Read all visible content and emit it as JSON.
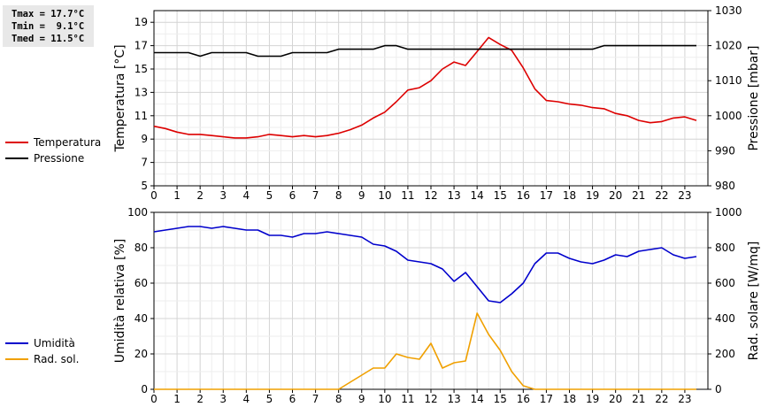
{
  "stats": {
    "tmax": "Tmax = 17.7°C",
    "tmin": "Tmin =  9.1°C",
    "tmed": "Tmed = 11.5°C"
  },
  "chart_data": [
    {
      "type": "line",
      "xlabel": "",
      "ylabel": "Temperatura [°C]",
      "y2label": "Pressione [mbar]",
      "xlim": [
        0,
        24
      ],
      "ylim": [
        5,
        20
      ],
      "y2lim": [
        980,
        1030
      ],
      "xticks": [
        "0",
        "1",
        "2",
        "3",
        "4",
        "5",
        "6",
        "7",
        "8",
        "9",
        "10",
        "11",
        "12",
        "13",
        "14",
        "15",
        "16",
        "17",
        "18",
        "19",
        "20",
        "21",
        "22",
        "23"
      ],
      "yticks": [
        "5",
        "7",
        "9",
        "11",
        "13",
        "15",
        "17",
        "19"
      ],
      "y2ticks": [
        "980",
        "990",
        "1000",
        "1010",
        "1020",
        "1030"
      ],
      "grid": true,
      "legend": "left",
      "series": [
        {
          "name": "Temperatura",
          "axis": "left",
          "color": "#dd0000",
          "x": [
            0,
            0.5,
            1,
            1.5,
            2,
            2.5,
            3,
            3.5,
            4,
            4.5,
            5,
            5.5,
            6,
            6.5,
            7,
            7.5,
            8,
            8.5,
            9,
            9.5,
            10,
            10.5,
            11,
            11.5,
            12,
            12.5,
            13,
            13.5,
            14,
            14.5,
            15,
            15.5,
            16,
            16.5,
            17,
            17.5,
            18,
            18.5,
            19,
            19.5,
            20,
            20.5,
            21,
            21.5,
            22,
            22.5,
            23,
            23.5
          ],
          "y": [
            10.1,
            9.9,
            9.6,
            9.4,
            9.4,
            9.3,
            9.2,
            9.1,
            9.1,
            9.2,
            9.4,
            9.3,
            9.2,
            9.3,
            9.2,
            9.3,
            9.5,
            9.8,
            10.2,
            10.8,
            11.3,
            12.2,
            13.2,
            13.4,
            14.0,
            15.0,
            15.6,
            15.3,
            16.5,
            17.7,
            17.1,
            16.6,
            15.1,
            13.3,
            12.3,
            12.2,
            12.0,
            11.9,
            11.7,
            11.6,
            11.2,
            11.0,
            10.6,
            10.4,
            10.5,
            10.8,
            10.9,
            10.6
          ]
        },
        {
          "name": "Pressione",
          "axis": "right",
          "color": "#000000",
          "x": [
            0,
            0.5,
            1,
            1.5,
            2,
            2.5,
            3,
            3.5,
            4,
            4.5,
            5,
            5.5,
            6,
            6.5,
            7,
            7.5,
            8,
            8.5,
            9,
            9.5,
            10,
            10.5,
            11,
            11.5,
            12,
            12.5,
            13,
            13.5,
            14,
            14.5,
            15,
            15.5,
            16,
            16.5,
            17,
            17.5,
            18,
            18.5,
            19,
            19.5,
            20,
            20.5,
            21,
            21.5,
            22,
            22.5,
            23,
            23.5
          ],
          "y": [
            1018,
            1018,
            1018,
            1018,
            1017,
            1018,
            1018,
            1018,
            1018,
            1017,
            1017,
            1017,
            1018,
            1018,
            1018,
            1018,
            1019,
            1019,
            1019,
            1019,
            1020,
            1020,
            1019,
            1019,
            1019,
            1019,
            1019,
            1019,
            1019,
            1019,
            1019,
            1019,
            1019,
            1019,
            1019,
            1019,
            1019,
            1019,
            1019,
            1020,
            1020,
            1020,
            1020,
            1020,
            1020,
            1020,
            1020,
            1020
          ]
        }
      ]
    },
    {
      "type": "line",
      "xlabel": "",
      "ylabel": "Umidità relativa [%]",
      "y2label": "Rad. solare [W/mq]",
      "xlim": [
        0,
        24
      ],
      "ylim": [
        0,
        100
      ],
      "y2lim": [
        0,
        1000
      ],
      "xticks": [
        "0",
        "1",
        "2",
        "3",
        "4",
        "5",
        "6",
        "7",
        "8",
        "9",
        "10",
        "11",
        "12",
        "13",
        "14",
        "15",
        "16",
        "17",
        "18",
        "19",
        "20",
        "21",
        "22",
        "23"
      ],
      "yticks": [
        "0",
        "20",
        "40",
        "60",
        "80",
        "100"
      ],
      "y2ticks": [
        "0",
        "200",
        "400",
        "600",
        "800",
        "1000"
      ],
      "grid": true,
      "legend": "left",
      "series": [
        {
          "name": "Umidità",
          "axis": "left",
          "color": "#0000cc",
          "x": [
            0,
            0.5,
            1,
            1.5,
            2,
            2.5,
            3,
            3.5,
            4,
            4.5,
            5,
            5.5,
            6,
            6.5,
            7,
            7.5,
            8,
            8.5,
            9,
            9.5,
            10,
            10.5,
            11,
            11.5,
            12,
            12.5,
            13,
            13.5,
            14,
            14.5,
            15,
            15.5,
            16,
            16.5,
            17,
            17.5,
            18,
            18.5,
            19,
            19.5,
            20,
            20.5,
            21,
            21.5,
            22,
            22.5,
            23,
            23.5
          ],
          "y": [
            89,
            90,
            91,
            92,
            92,
            91,
            92,
            91,
            90,
            90,
            87,
            87,
            86,
            88,
            88,
            89,
            88,
            87,
            86,
            82,
            81,
            78,
            73,
            72,
            71,
            68,
            61,
            66,
            58,
            50,
            49,
            54,
            60,
            71,
            77,
            77,
            74,
            72,
            71,
            73,
            76,
            75,
            78,
            79,
            80,
            76,
            74,
            75
          ]
        },
        {
          "name": "Rad. sol.",
          "axis": "right",
          "color": "#f0a000",
          "x": [
            0,
            0.5,
            1,
            1.5,
            2,
            2.5,
            3,
            3.5,
            4,
            4.5,
            5,
            5.5,
            6,
            6.5,
            7,
            7.5,
            8,
            8.5,
            9,
            9.5,
            10,
            10.5,
            11,
            11.5,
            12,
            12.5,
            13,
            13.5,
            14,
            14.5,
            15,
            15.5,
            16,
            16.5,
            17,
            17.5,
            18,
            18.5,
            19,
            19.5,
            20,
            20.5,
            21,
            21.5,
            22,
            22.5,
            23,
            23.5
          ],
          "y": [
            0,
            0,
            0,
            0,
            0,
            0,
            0,
            0,
            0,
            0,
            0,
            0,
            0,
            0,
            0,
            0,
            0,
            40,
            80,
            120,
            120,
            200,
            180,
            170,
            260,
            120,
            150,
            160,
            430,
            310,
            220,
            100,
            20,
            0,
            0,
            0,
            0,
            0,
            0,
            0,
            0,
            0,
            0,
            0,
            0,
            0,
            0,
            0
          ]
        }
      ]
    }
  ]
}
